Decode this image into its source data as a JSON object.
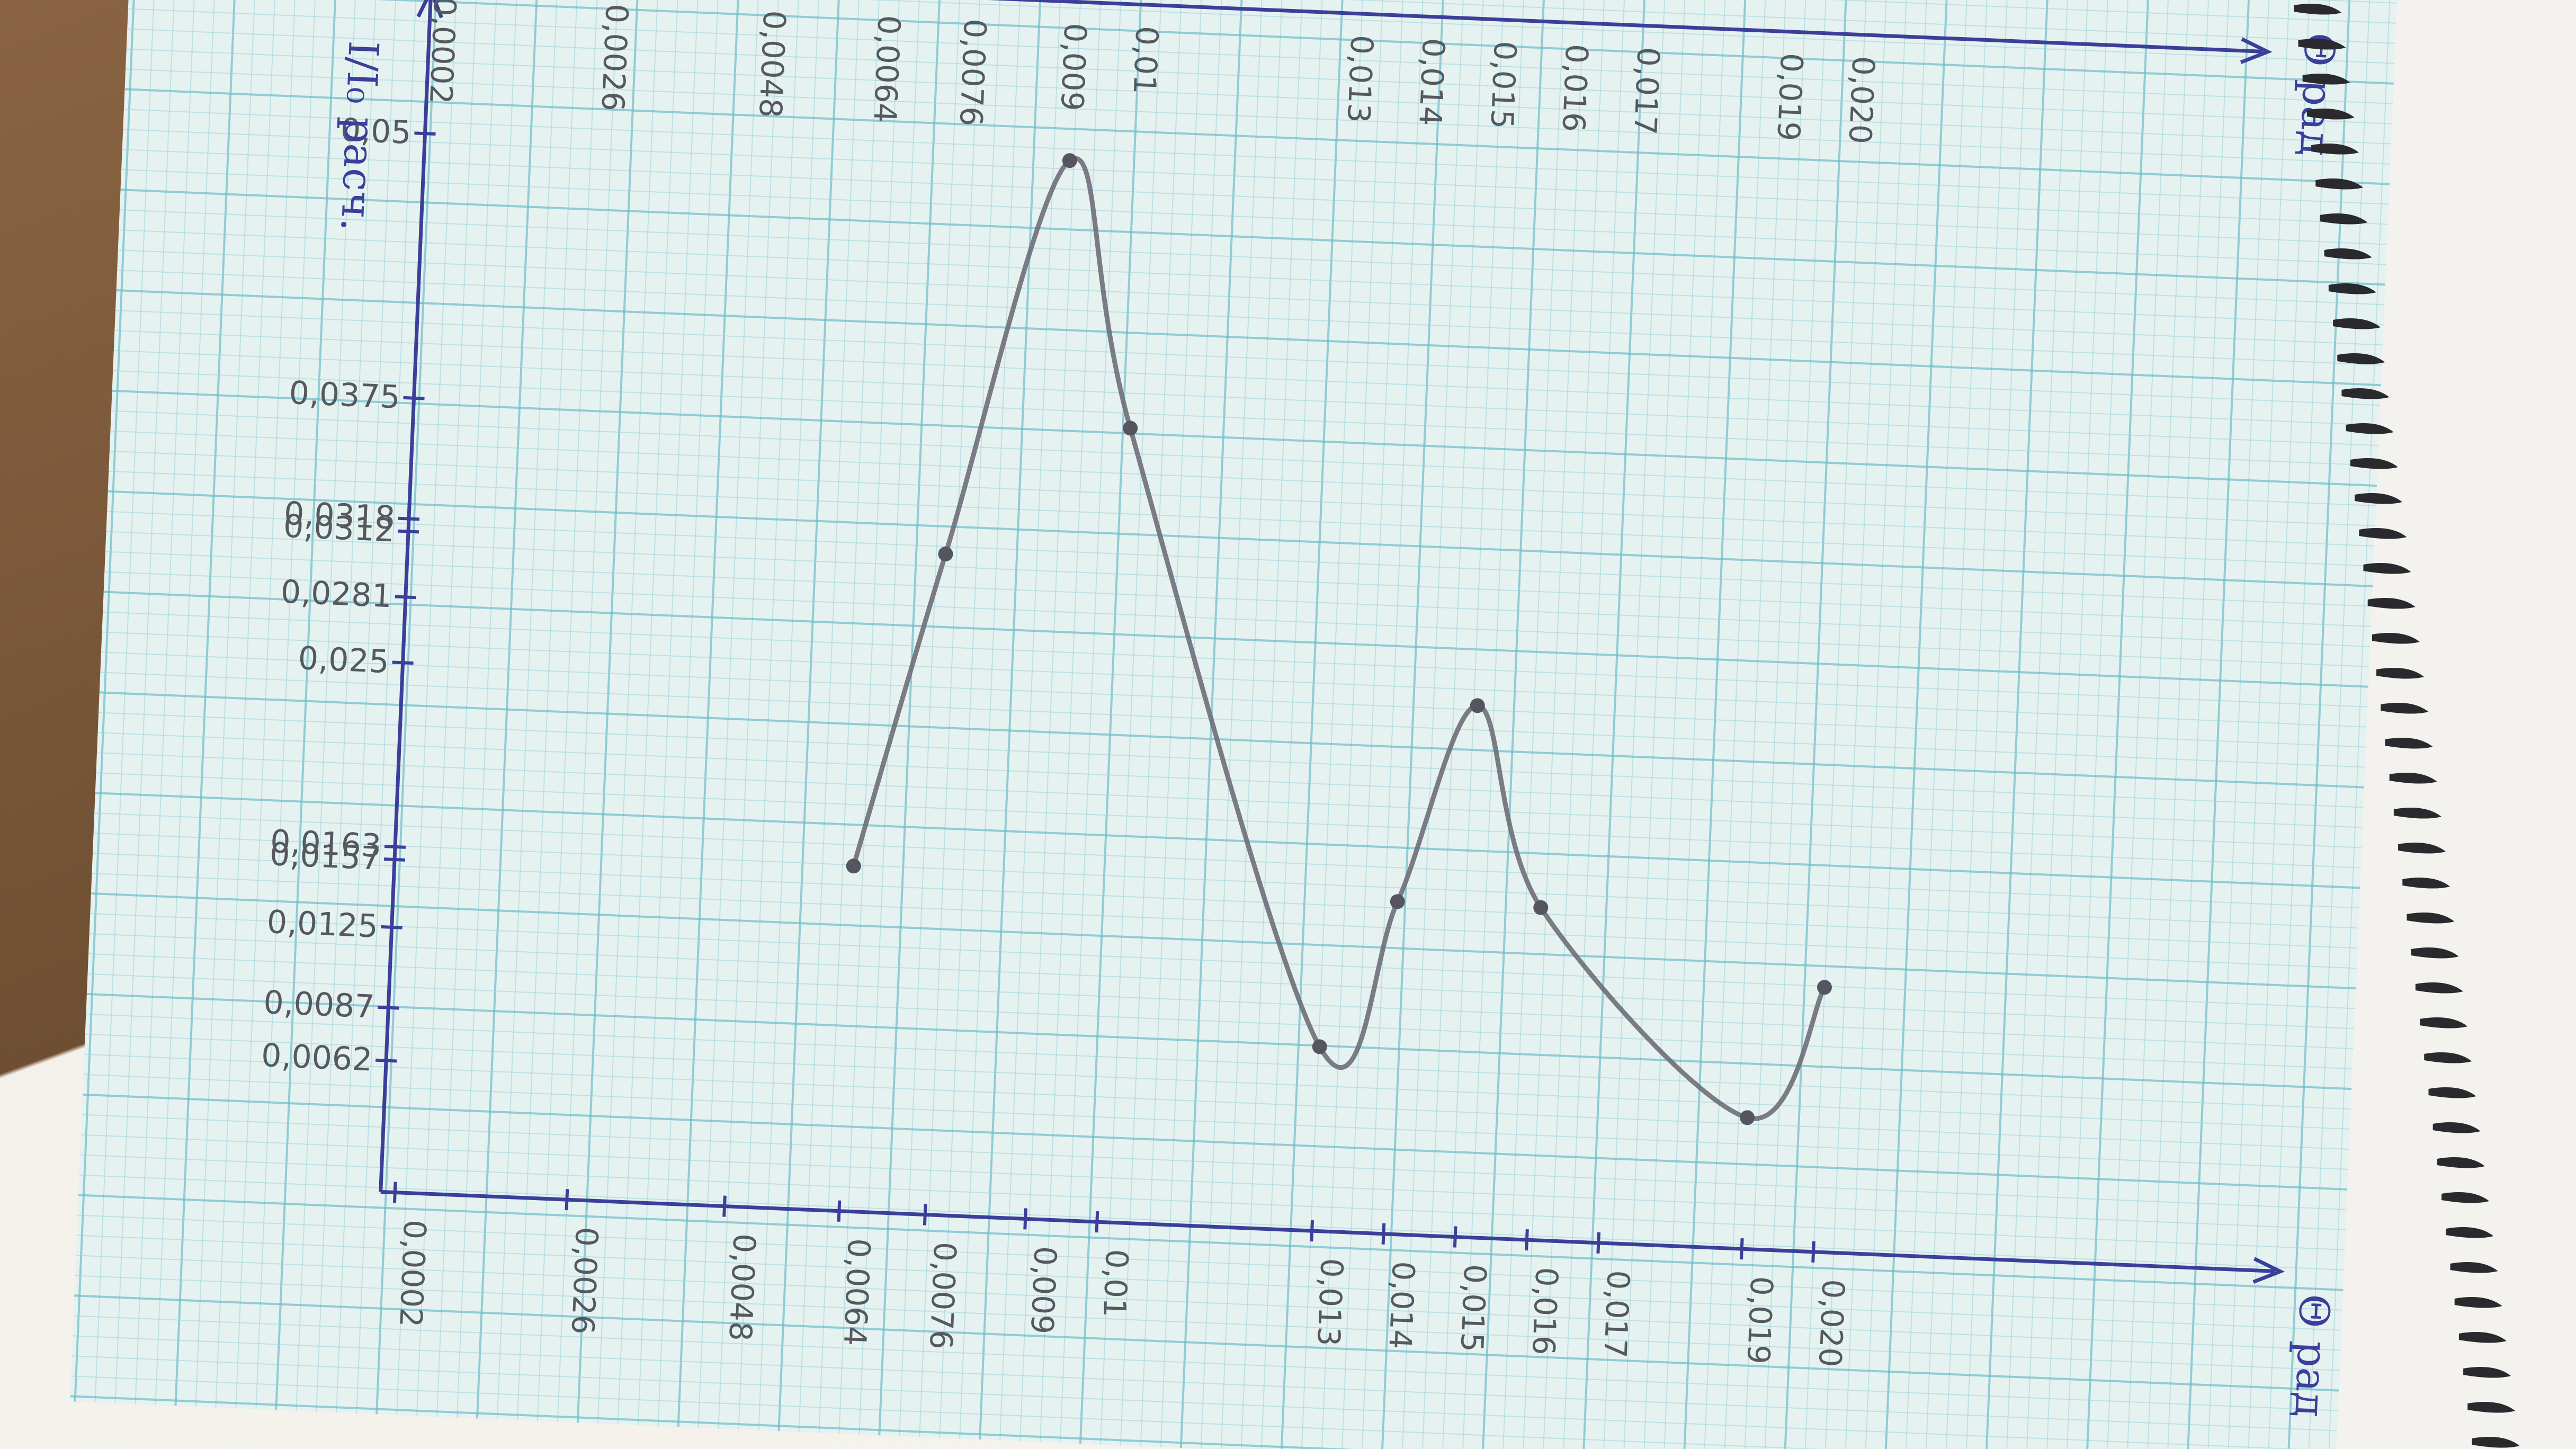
{
  "chart_data": {
    "type": "line",
    "title": "",
    "ylabel": "I/I₀ расч.",
    "xlabel": "Θ рад",
    "top_axis_label": "Θ рад",
    "x": [
      0.0064,
      0.0075,
      0.009,
      0.01,
      0.013,
      0.014,
      0.015,
      0.016,
      0.019,
      0.02
    ],
    "y": [
      0.0163,
      0.0312,
      0.05,
      0.0375,
      0.0087,
      0.0157,
      0.0251,
      0.0157,
      0.0062,
      0.0125
    ],
    "x_tick_labels": [
      "0,0002",
      "0,0026",
      "0,0048",
      "0,0064",
      "0,0076",
      "0,009",
      "0,01",
      "0,013",
      "0,014",
      "0,015",
      "0,016",
      "0,017",
      "0,019",
      "0,020"
    ],
    "y_tick_labels": [
      "0,0062",
      "0,0087",
      "0,0125",
      "0,0163",
      "0,0157",
      "0,025",
      "0,0281",
      "0,0312",
      "0,0318",
      "0,0375",
      "0,05"
    ],
    "top_tick_labels": [
      "0,0002",
      "0,0026",
      "0,0048",
      "0,0064",
      "0,0076",
      "0,009",
      "0,01",
      "0,013",
      "0,014",
      "0,015",
      "0,016",
      "0,017",
      "0,019",
      "0,020"
    ],
    "xlim": [
      0,
      0.026
    ],
    "ylim": [
      0,
      0.055
    ],
    "grid": true,
    "legend": "none"
  },
  "colors": {
    "axis": "#3b3f9a",
    "curve": "#6e6e78",
    "grid": "#6cbccb",
    "paper": "#eaf3f1"
  }
}
